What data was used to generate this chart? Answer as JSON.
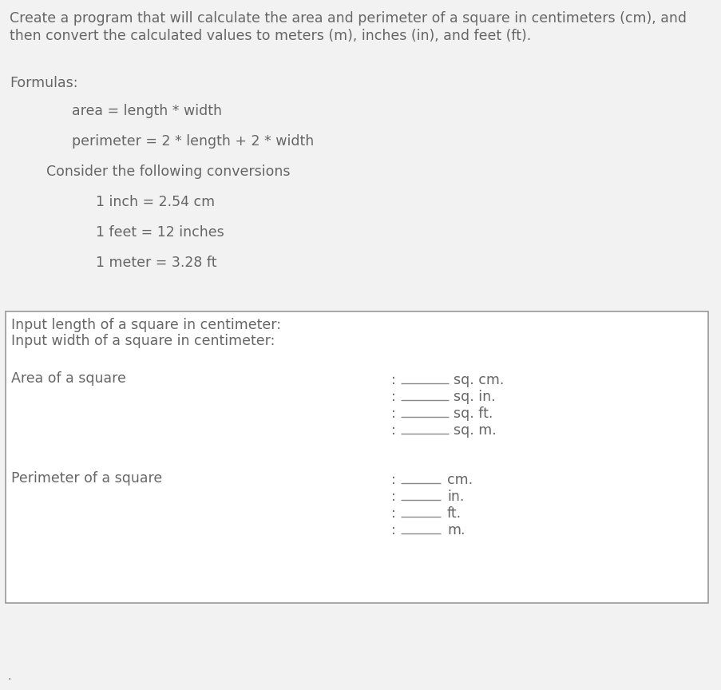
{
  "bg_color": "#f2f2f2",
  "text_color": "#666666",
  "font_family": "DejaVu Sans",
  "title_line1": "Create a program that will calculate the area and perimeter of a square in centimeters (cm), and",
  "title_line2": "then convert the calculated values to meters (m), inches (in), and feet (ft).",
  "formulas_label": "Formulas:",
  "formula1": "area = length * width",
  "formula2": "perimeter = 2 * length + 2 * width",
  "conversions_label": "Consider the following conversions",
  "conv1": "1 inch = 2.54 cm",
  "conv2": "1 feet = 12 inches",
  "conv3": "1 meter = 3.28 ft",
  "box_input1": "Input length of a square in centimeter:",
  "box_input2": "Input width of a square in centimeter:",
  "area_label": "Area of a square",
  "perimeter_label": "Perimeter of a square",
  "area_units": [
    "sq. cm.",
    "sq. in.",
    "sq. ft.",
    "sq. m."
  ],
  "perimeter_units": [
    "cm.",
    "in.",
    "ft.",
    "m."
  ],
  "dot_text": ".",
  "box_color": "#ffffff",
  "box_border_color": "#999999",
  "line_color": "#888888",
  "font_size": 12.5
}
